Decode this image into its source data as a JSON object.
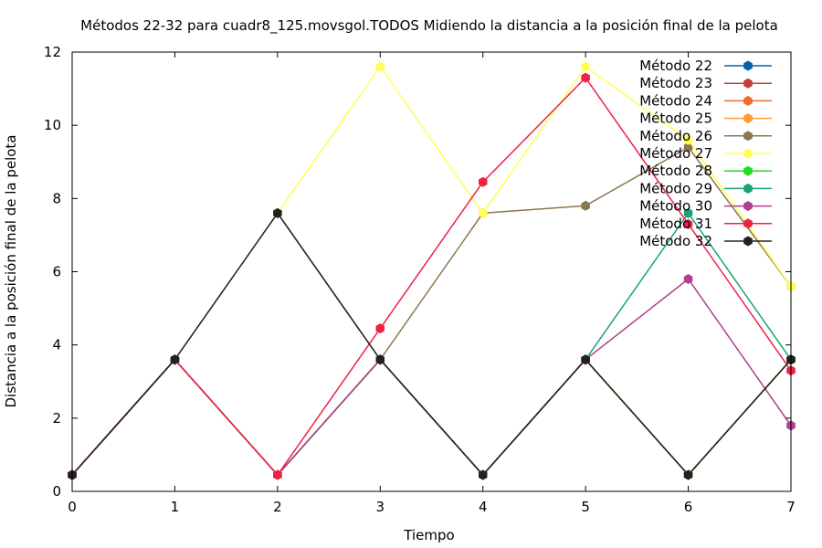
{
  "chart_data": {
    "type": "line",
    "title": "Métodos 22-32 para cuadr8_125.movsgol.TODOS Midiendo la distancia a la posición final de la pelota",
    "xlabel": "Tiempo",
    "ylabel": "Distancia a la posición final de la pelota",
    "xlim": [
      0,
      7
    ],
    "ylim": [
      0,
      12
    ],
    "xticks": [
      0,
      1,
      2,
      3,
      4,
      5,
      6,
      7
    ],
    "yticks": [
      0,
      2,
      4,
      6,
      8,
      10,
      12
    ],
    "grid": false,
    "legend_position": "top-right",
    "x": [
      0,
      1,
      2,
      3,
      4,
      5,
      6,
      7
    ],
    "series": [
      {
        "name": "Método 22",
        "color": "#0060ad",
        "values": [
          0.45,
          3.6,
          0.45,
          3.6,
          0.45,
          3.6,
          0.45,
          3.6
        ]
      },
      {
        "name": "Método 23",
        "color": "#c2403a",
        "values": [
          0.45,
          3.6,
          0.45,
          3.6,
          0.45,
          3.6,
          0.45,
          3.6
        ]
      },
      {
        "name": "Método 24",
        "color": "#f26a30",
        "values": [
          0.45,
          3.6,
          0.45,
          3.6,
          0.45,
          3.6,
          0.45,
          3.6
        ]
      },
      {
        "name": "Método 25",
        "color": "#ff9c3a",
        "values": [
          0.45,
          3.6,
          0.45,
          3.6,
          0.45,
          3.6,
          0.45,
          3.6
        ]
      },
      {
        "name": "Método 26",
        "color": "#8b7650",
        "values": [
          0.45,
          3.6,
          7.6,
          3.6,
          7.6,
          7.8,
          9.4,
          5.6
        ]
      },
      {
        "name": "Método 27",
        "color": "#ffff55",
        "values": [
          0.45,
          3.6,
          7.6,
          11.6,
          7.6,
          11.6,
          9.6,
          5.6
        ]
      },
      {
        "name": "Método 28",
        "color": "#22dd22",
        "values": [
          0.45,
          3.6,
          0.45,
          3.6,
          0.45,
          3.6,
          0.45,
          3.6
        ]
      },
      {
        "name": "Método 29",
        "color": "#19a37a",
        "values": [
          0.45,
          3.6,
          0.45,
          3.6,
          0.45,
          3.6,
          7.6,
          3.6
        ]
      },
      {
        "name": "Método 30",
        "color": "#b0408e",
        "values": [
          0.45,
          3.6,
          0.45,
          3.6,
          0.45,
          3.6,
          5.8,
          1.8
        ]
      },
      {
        "name": "Método 31",
        "color": "#ee2244",
        "values": [
          0.45,
          3.6,
          0.45,
          4.45,
          8.45,
          11.3,
          7.3,
          3.3
        ]
      },
      {
        "name": "Método 32",
        "color": "#222222",
        "values": [
          0.45,
          3.6,
          7.6,
          3.6,
          0.45,
          3.6,
          0.45,
          3.6
        ]
      }
    ]
  }
}
